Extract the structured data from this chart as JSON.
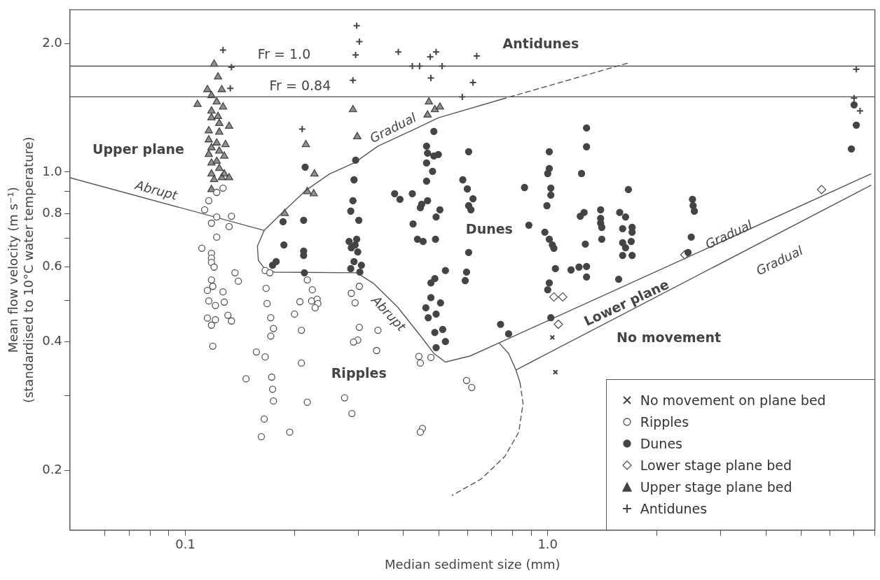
{
  "chart_data": {
    "type": "scatter",
    "xlabel": "Median sediment size (mm)",
    "ylabel": "Mean flow velocity (m s⁻¹)\n(standardised to 10°C water temperature)",
    "log": "xy",
    "grid": false,
    "legend": "bottom right",
    "xlim": [
      0.048,
      8
    ],
    "ylim": [
      0.145,
      2.4
    ],
    "xticks": [
      {
        "value": 0.06,
        "label": null
      },
      {
        "value": 0.07,
        "label": null
      },
      {
        "value": 0.08,
        "label": null
      },
      {
        "value": 0.09,
        "label": null
      },
      0.1,
      {
        "value": 0.2,
        "label": null
      },
      {
        "value": 0.3,
        "label": null
      },
      {
        "value": 0.4,
        "label": null
      },
      {
        "value": 0.5,
        "label": null
      },
      {
        "value": 0.6,
        "label": null
      },
      {
        "value": 0.7,
        "label": null
      },
      {
        "value": 0.8,
        "label": null
      },
      {
        "value": 0.9,
        "label": null
      },
      {
        "value": 1,
        "label": "1.0"
      },
      {
        "value": 2,
        "label": null
      },
      {
        "value": 3,
        "label": null
      },
      {
        "value": 4,
        "label": null
      },
      {
        "value": 5,
        "label": null
      },
      {
        "value": 6,
        "label": null
      },
      {
        "value": 7,
        "label": null
      },
      {
        "value": 8,
        "label": null
      }
    ],
    "yticks": [
      0.2,
      {
        "value": 0.3,
        "label": null
      },
      0.4,
      {
        "value": 0.5,
        "label": null
      },
      0.6,
      {
        "value": 0.7,
        "label": null
      },
      0.8,
      {
        "value": 0.9,
        "label": null
      },
      {
        "value": 1,
        "label": "1.0"
      },
      {
        "value": 2,
        "label": "2.0"
      }
    ],
    "ref_lines": [
      {
        "axis": "y",
        "value": 1.77,
        "color": "#555555"
      },
      {
        "axis": "y",
        "value": 1.5,
        "color": "#555555"
      }
    ],
    "annotations": [
      "Fr = 1.0",
      "Fr = 0.84",
      "Antidunes",
      "Upper plane",
      "Dunes",
      "Ripples",
      "Lower plane",
      "No movement",
      "Abrupt",
      "Abrupt",
      "Gradual",
      "Gradual",
      "Gradual"
    ],
    "series": [
      {
        "name": "No movement on plane bed",
        "color": "#444444",
        "marker": "x",
        "x": [
          1.03,
          1.05
        ],
        "values": [
          0.41,
          0.34
        ]
      },
      {
        "name": "Ripples",
        "color": "#555555",
        "marker": "circle",
        "x": [
          0.127,
          0.122,
          0.116,
          0.113,
          0.122,
          0.134,
          0.118,
          0.132,
          0.122,
          0.111,
          0.118,
          0.118,
          0.118,
          0.12,
          0.137,
          0.14,
          0.166,
          0.171,
          0.118,
          0.119,
          0.115,
          0.127,
          0.116,
          0.121,
          0.128,
          0.167,
          0.168,
          0.115,
          0.121,
          0.118,
          0.131,
          0.134,
          0.119,
          0.172,
          0.175,
          0.172,
          0.157,
          0.166,
          0.147,
          0.173,
          0.174,
          0.175,
          0.165,
          0.162,
          0.194,
          0.217,
          0.224,
          0.207,
          0.223,
          0.231,
          0.232,
          0.228,
          0.2,
          0.209,
          0.209,
          0.217,
          0.302,
          0.287,
          0.294,
          0.302,
          0.299,
          0.291,
          0.34,
          0.337,
          0.275,
          0.288,
          0.441,
          0.445,
          0.476,
          0.597,
          0.617,
          0.451,
          0.445
        ],
        "values": [
          0.917,
          0.896,
          0.857,
          0.816,
          0.785,
          0.788,
          0.759,
          0.745,
          0.704,
          0.663,
          0.645,
          0.629,
          0.614,
          0.599,
          0.581,
          0.555,
          0.588,
          0.581,
          0.559,
          0.54,
          0.528,
          0.524,
          0.499,
          0.487,
          0.496,
          0.534,
          0.492,
          0.455,
          0.451,
          0.438,
          0.462,
          0.448,
          0.391,
          0.456,
          0.43,
          0.413,
          0.379,
          0.369,
          0.328,
          0.331,
          0.31,
          0.291,
          0.264,
          0.24,
          0.246,
          0.559,
          0.53,
          0.497,
          0.499,
          0.504,
          0.492,
          0.481,
          0.465,
          0.426,
          0.357,
          0.289,
          0.54,
          0.52,
          0.494,
          0.433,
          0.404,
          0.4,
          0.426,
          0.382,
          0.296,
          0.272,
          0.37,
          0.357,
          0.368,
          0.325,
          0.313,
          0.251,
          0.246
        ]
      },
      {
        "name": "Dunes",
        "color": "#444444",
        "marker": "circle",
        "x": [
          0.214,
          0.186,
          0.212,
          0.187,
          0.212,
          0.212,
          0.178,
          0.174,
          0.213,
          0.295,
          0.292,
          0.29,
          0.286,
          0.301,
          0.283,
          0.297,
          0.287,
          0.294,
          0.299,
          0.292,
          0.306,
          0.286,
          0.303,
          0.378,
          0.391,
          0.423,
          0.466,
          0.449,
          0.445,
          0.504,
          0.492,
          0.425,
          0.437,
          0.453,
          0.49,
          0.485,
          0.463,
          0.466,
          0.485,
          0.499,
          0.463,
          0.481,
          0.463,
          0.522,
          0.488,
          0.476,
          0.597,
          0.592,
          0.476,
          0.506,
          0.461,
          0.492,
          0.468,
          0.488,
          0.513,
          0.522,
          0.492,
          0.605,
          0.583,
          0.6,
          0.622,
          0.605,
          0.614,
          0.605,
          0.741,
          0.78,
          0.863,
          0.887,
          1.28,
          1.28,
          1.01,
          1.01,
          1.0,
          1.24,
          1.02,
          1.02,
          0.995,
          1.67,
          0.982,
          1.01,
          1.03,
          1.04,
          1.26,
          1.23,
          1.4,
          1.4,
          1.4,
          1.41,
          1.41,
          1.27,
          1.58,
          1.64,
          1.61,
          1.71,
          1.71,
          1.61,
          1.7,
          1.64,
          1.61,
          1.71,
          1.05,
          1.16,
          1.22,
          1.28,
          1.28,
          1.57,
          1.01,
          1.0,
          1.02,
          2.51,
          2.52,
          2.54,
          2.49,
          2.44,
          7.01,
          7.11,
          6.89
        ],
        "values": [
          1.027,
          0.765,
          0.771,
          0.675,
          0.653,
          0.638,
          0.617,
          0.605,
          0.581,
          1.066,
          0.959,
          0.857,
          0.81,
          0.771,
          0.688,
          0.696,
          0.665,
          0.675,
          0.65,
          0.617,
          0.605,
          0.594,
          0.583,
          0.89,
          0.863,
          0.89,
          0.857,
          0.841,
          0.825,
          0.816,
          0.785,
          0.756,
          0.696,
          0.688,
          0.696,
          1.245,
          1.15,
          1.107,
          1.091,
          1.099,
          1.05,
          1.004,
          0.952,
          0.588,
          0.563,
          0.55,
          0.583,
          0.557,
          0.508,
          0.494,
          0.481,
          0.465,
          0.456,
          0.421,
          0.428,
          0.401,
          0.388,
          1.116,
          0.959,
          0.913,
          0.866,
          0.834,
          0.816,
          0.648,
          0.44,
          0.418,
          0.92,
          0.751,
          1.268,
          1.146,
          1.116,
          1.019,
          0.992,
          0.992,
          0.917,
          0.883,
          0.834,
          0.91,
          0.723,
          0.696,
          0.675,
          0.663,
          0.804,
          0.788,
          0.816,
          0.779,
          0.759,
          0.742,
          0.696,
          0.678,
          0.804,
          0.785,
          0.737,
          0.742,
          0.723,
          0.683,
          0.688,
          0.665,
          0.638,
          0.638,
          0.594,
          0.59,
          0.599,
          0.601,
          0.568,
          0.561,
          0.55,
          0.53,
          0.456,
          0.863,
          0.834,
          0.81,
          0.704,
          0.648,
          1.436,
          1.288,
          1.133
        ]
      },
      {
        "name": "Lower stage plane bed",
        "color": "#555555",
        "marker": "diamond",
        "x": [
          1.04,
          1.1,
          1.07,
          2.39,
          5.7
        ],
        "values": [
          0.51,
          0.51,
          0.44,
          0.64,
          0.91
        ]
      },
      {
        "name": "Upper stage plane bed",
        "color": "#444444",
        "marker": "triangle",
        "x": [
          0.12,
          0.123,
          0.115,
          0.126,
          0.118,
          0.108,
          0.122,
          0.127,
          0.118,
          0.123,
          0.118,
          0.132,
          0.124,
          0.116,
          0.124,
          0.116,
          0.122,
          0.129,
          0.118,
          0.124,
          0.116,
          0.128,
          0.122,
          0.118,
          0.124,
          0.118,
          0.128,
          0.132,
          0.126,
          0.12,
          0.118,
          0.29,
          0.47,
          0.504,
          0.488,
          0.466,
          0.298,
          0.215,
          0.227,
          0.217,
          0.226,
          0.188
        ],
        "values": [
          1.79,
          1.67,
          1.56,
          1.56,
          1.51,
          1.44,
          1.46,
          1.42,
          1.39,
          1.35,
          1.34,
          1.28,
          1.3,
          1.25,
          1.24,
          1.19,
          1.17,
          1.16,
          1.14,
          1.12,
          1.1,
          1.09,
          1.06,
          1.05,
          1.02,
          0.99,
          0.99,
          0.97,
          0.97,
          0.96,
          0.91,
          1.4,
          1.46,
          1.42,
          1.4,
          1.36,
          1.21,
          1.16,
          0.99,
          0.9,
          0.89,
          0.8
        ]
      },
      {
        "name": "Antidunes",
        "color": "#444444",
        "marker": "cross",
        "x": [
          0.127,
          0.134,
          0.133,
          0.297,
          0.302,
          0.295,
          0.387,
          0.492,
          0.474,
          0.423,
          0.443,
          0.511,
          0.637,
          0.29,
          0.476,
          0.622,
          0.581,
          0.21,
          7.11,
          7.01,
          7.28
        ],
        "values": [
          1.93,
          1.76,
          1.57,
          2.2,
          2.02,
          1.88,
          1.91,
          1.91,
          1.86,
          1.77,
          1.77,
          1.77,
          1.87,
          1.64,
          1.66,
          1.62,
          1.5,
          1.26,
          1.74,
          1.49,
          1.39
        ]
      },
      {
        "type": "line",
        "color": "#555555",
        "line_style": "solid",
        "x": [
          0.048,
          0.165
        ],
        "values": [
          0.97,
          0.73
        ]
      },
      {
        "type": "line",
        "color": "#555555",
        "line_style": "solid",
        "x": [
          0.745,
          0.499,
          0.429,
          0.34,
          0.292,
          0.25,
          0.215,
          0.187,
          0.165,
          0.158,
          0.159,
          0.166,
          0.176,
          0.297,
          0.33,
          0.385,
          0.449,
          0.485,
          0.522,
          0.611,
          0.734,
          7.8
        ],
        "values": [
          1.48,
          1.34,
          1.26,
          1.15,
          1.05,
          0.99,
          0.906,
          0.81,
          0.73,
          0.67,
          0.621,
          0.592,
          0.583,
          0.581,
          0.549,
          0.483,
          0.41,
          0.376,
          0.359,
          0.371,
          0.398,
          0.99
        ]
      },
      {
        "type": "line",
        "color": "#555555",
        "line_style": "dashed",
        "x": [
          0.745,
          1.667
        ],
        "values": [
          1.48,
          1.8
        ]
      },
      {
        "type": "line",
        "color": "#555555",
        "line_style": "solid",
        "x": [
          0.817,
          7.8
        ],
        "values": [
          0.344,
          0.931
        ]
      },
      {
        "type": "line",
        "color": "#555555",
        "line_style": "solid",
        "x": [
          0.734,
          0.78,
          0.817,
          0.839
        ],
        "values": [
          0.398,
          0.376,
          0.344,
          0.321
        ]
      },
      {
        "type": "line",
        "color": "#555555",
        "line_style": "dashed",
        "x": [
          0.839,
          0.855,
          0.832,
          0.762,
          0.655,
          0.545
        ],
        "values": [
          0.321,
          0.287,
          0.246,
          0.216,
          0.191,
          0.175
        ]
      }
    ]
  }
}
